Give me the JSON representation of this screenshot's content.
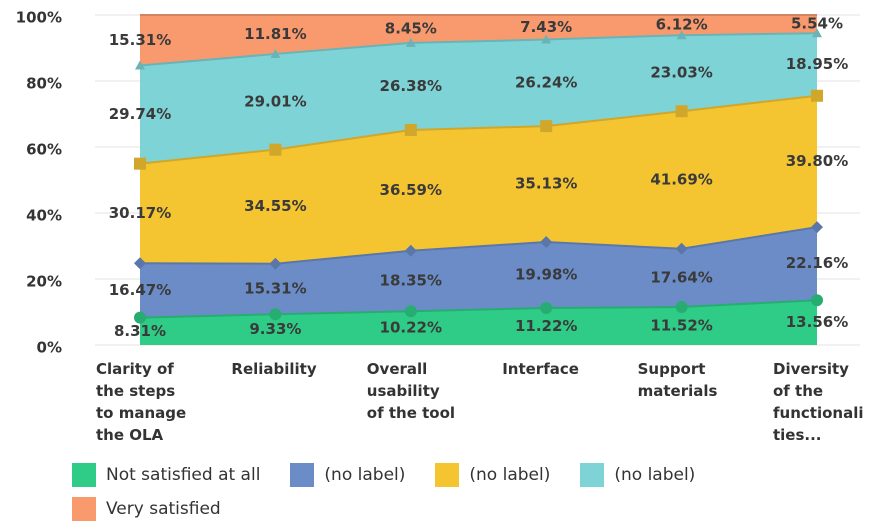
{
  "chart_data": {
    "type": "stacked_area",
    "categories": [
      "Clarity of the steps to manage the OLA",
      "Reliability",
      "Overall usability of the tool",
      "Interface",
      "Support materials",
      "Diversity of the functionalities..."
    ],
    "series": [
      {
        "name": "Not satisfied at all",
        "color": "#2ecc86",
        "marker": "circle",
        "values": [
          8.31,
          9.33,
          10.22,
          11.22,
          11.52,
          13.56
        ],
        "value_labels": [
          "8.31%",
          "9.33%",
          "10.22%",
          "11.22%",
          "11.52%",
          "13.56%"
        ]
      },
      {
        "name": "(no label)",
        "color": "#6b8cc7",
        "marker": "diamond",
        "values": [
          16.47,
          15.31,
          18.35,
          19.98,
          17.64,
          22.16
        ],
        "value_labels": [
          "16.47%",
          "15.31%",
          "18.35%",
          "19.98%",
          "17.64%",
          "22.16%"
        ]
      },
      {
        "name": "(no label)",
        "color": "#f5c431",
        "marker": "square",
        "values": [
          30.17,
          34.55,
          36.59,
          35.13,
          41.69,
          39.8
        ],
        "value_labels": [
          "30.17%",
          "34.55%",
          "36.59%",
          "35.13%",
          "41.69%",
          "39.80%"
        ]
      },
      {
        "name": "(no label)",
        "color": "#7dd3d6",
        "marker": "triangle",
        "values": [
          29.74,
          29.01,
          26.38,
          26.24,
          23.03,
          18.95
        ],
        "value_labels": [
          "29.74%",
          "29.01%",
          "26.38%",
          "26.24%",
          "23.03%",
          "18.95%"
        ]
      },
      {
        "name": "Very satisfied",
        "color": "#f99a6e",
        "marker": "none",
        "values": [
          15.31,
          11.81,
          8.45,
          7.43,
          6.12,
          5.54
        ],
        "value_labels": [
          "15.31%",
          "11.81%",
          "8.45%",
          "7.43%",
          "6.12%",
          "5.54%"
        ]
      }
    ],
    "ylim": [
      0,
      100
    ],
    "yticks": [
      {
        "value": 0,
        "label": "0%"
      },
      {
        "value": 20,
        "label": "20%"
      },
      {
        "value": 40,
        "label": "40%"
      },
      {
        "value": 60,
        "label": "60%"
      },
      {
        "value": 80,
        "label": "80%"
      },
      {
        "value": 100,
        "label": "100%"
      }
    ],
    "grid": true
  }
}
